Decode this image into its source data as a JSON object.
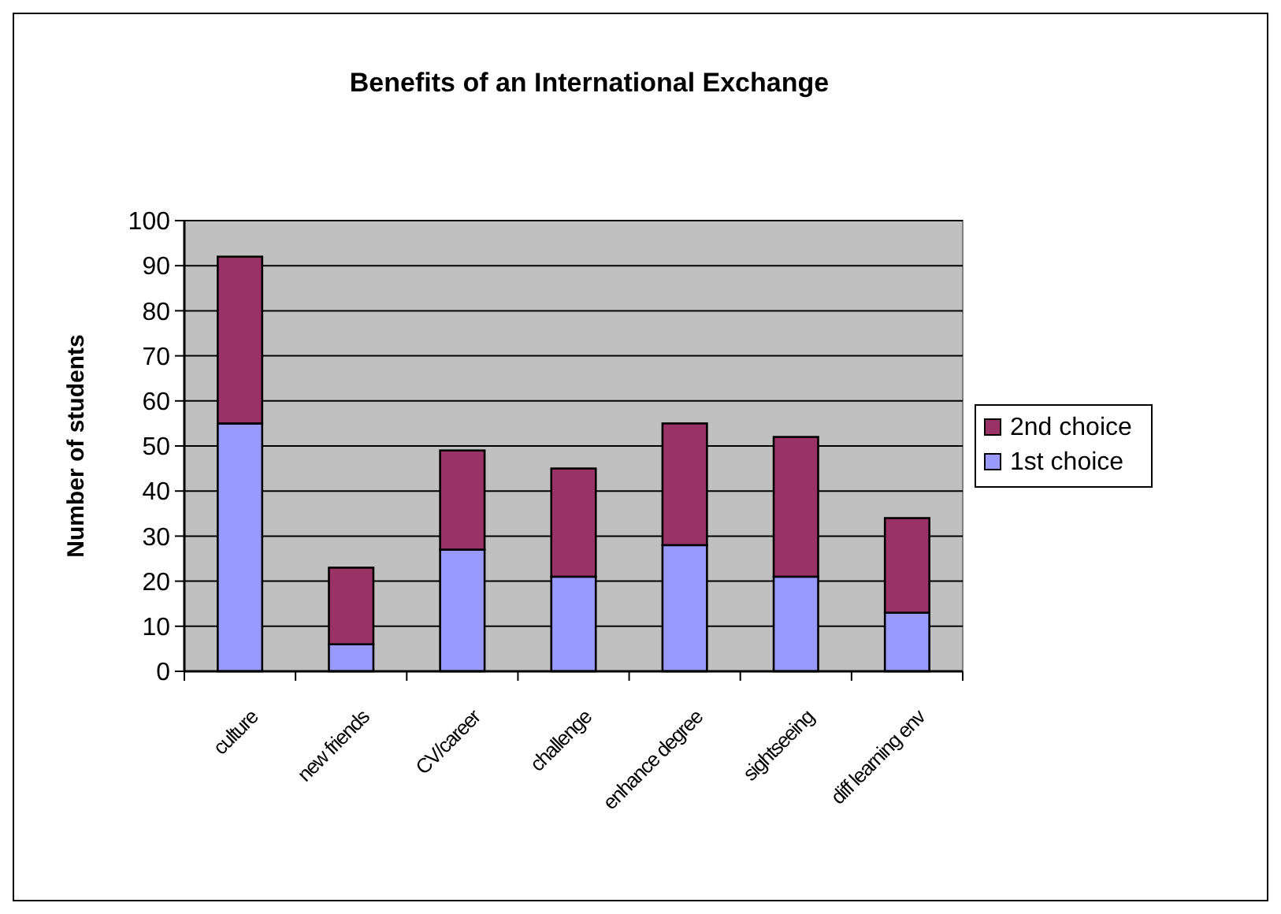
{
  "chart_data": {
    "type": "bar",
    "title": "Benefits of an International Exchange",
    "ylabel": "Number of students",
    "categories": [
      "culture",
      "new friends",
      "CV/career",
      "challenge",
      "enhance degree",
      "sightseeing",
      "diff learning env"
    ],
    "stacked": true,
    "series": [
      {
        "name": "1st choice",
        "color": "#9999ff",
        "values": [
          55,
          6,
          27,
          21,
          28,
          21,
          13
        ]
      },
      {
        "name": "2nd choice",
        "color": "#993366",
        "values": [
          37,
          17,
          22,
          24,
          27,
          31,
          21
        ]
      }
    ],
    "ylim": [
      0,
      100
    ],
    "yticks": [
      0,
      10,
      20,
      30,
      40,
      50,
      60,
      70,
      80,
      90,
      100
    ],
    "grid": "y",
    "legend": "right"
  }
}
